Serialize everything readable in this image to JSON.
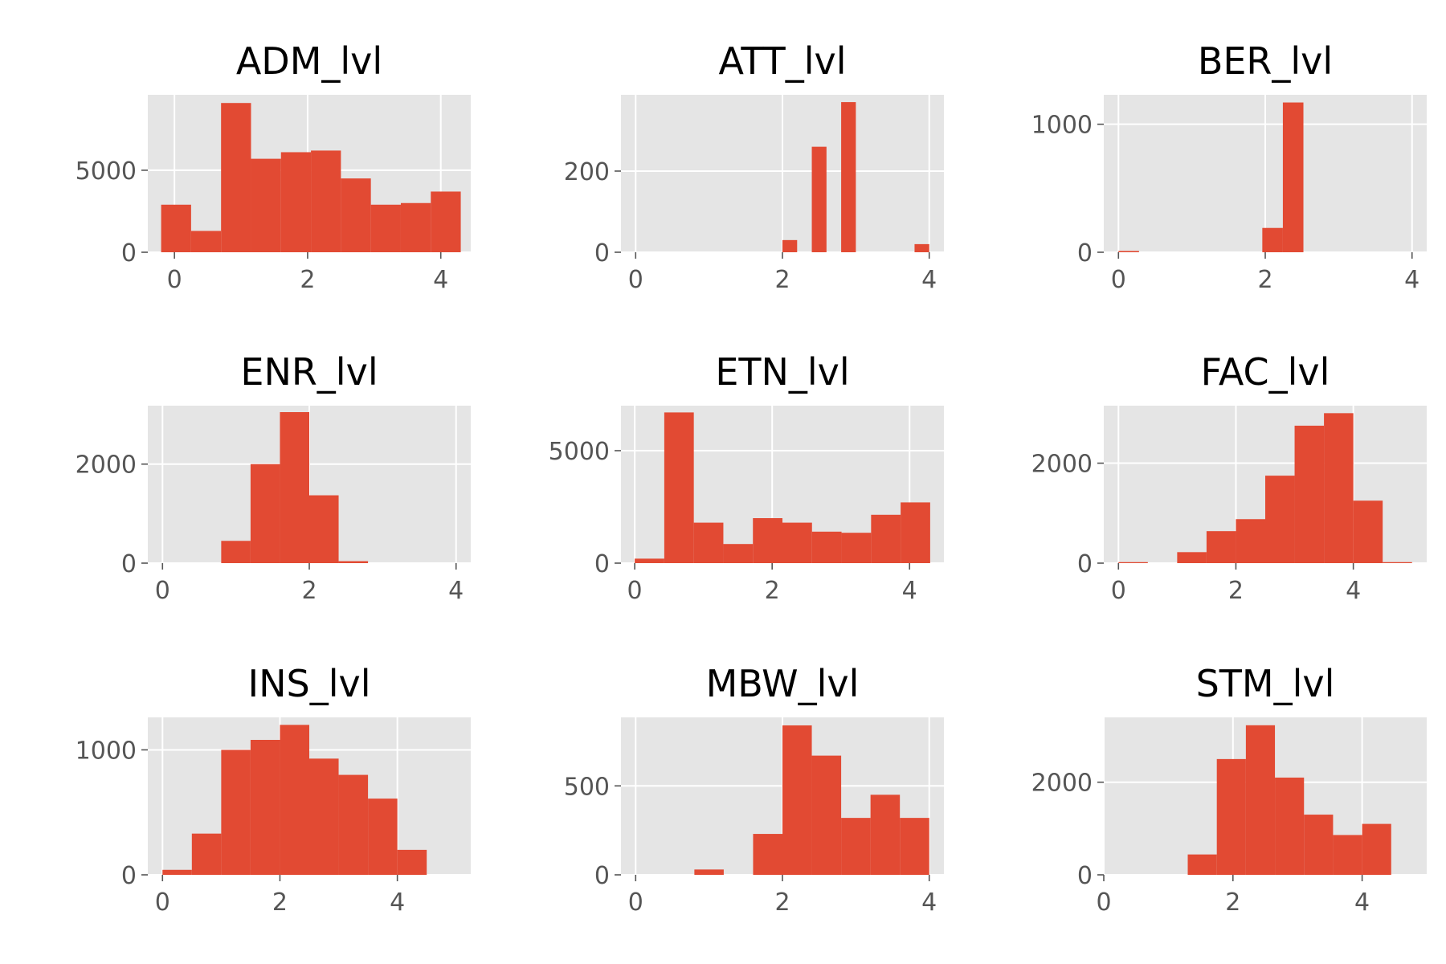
{
  "chart_data": [
    {
      "type": "bar",
      "title": "ADM_lvl",
      "bins": [
        [
          -0.2,
          0.25
        ],
        [
          0.25,
          0.7
        ],
        [
          0.7,
          1.15
        ],
        [
          1.15,
          1.6
        ],
        [
          1.6,
          2.05
        ],
        [
          2.05,
          2.5
        ],
        [
          2.5,
          2.95
        ],
        [
          2.95,
          3.4
        ],
        [
          3.4,
          3.85
        ],
        [
          3.85,
          4.3
        ]
      ],
      "values": [
        2900,
        1300,
        9100,
        5700,
        6100,
        6200,
        4500,
        2900,
        3000,
        3700
      ],
      "xlim": [
        -0.4,
        4.45
      ],
      "ylim": [
        0,
        9600
      ],
      "xticks": [
        0,
        2,
        4
      ],
      "yticks": [
        0,
        5000
      ]
    },
    {
      "type": "bar",
      "title": "ATT_lvl",
      "bins": [
        [
          2.0,
          2.2
        ],
        [
          2.2,
          2.4
        ],
        [
          2.4,
          2.6
        ],
        [
          2.6,
          2.8
        ],
        [
          2.8,
          3.0
        ],
        [
          3.0,
          3.2
        ],
        [
          3.2,
          3.4
        ],
        [
          3.4,
          3.6
        ],
        [
          3.6,
          3.8
        ],
        [
          3.8,
          4.0
        ]
      ],
      "values": [
        30,
        0,
        260,
        0,
        370,
        0,
        0,
        0,
        0,
        20
      ],
      "xlim": [
        -0.2,
        4.2
      ],
      "ylim": [
        0,
        388
      ],
      "xticks": [
        0,
        2,
        4
      ],
      "yticks": [
        0,
        200
      ]
    },
    {
      "type": "bar",
      "title": "BER_lvl",
      "bins": [
        [
          0.0,
          0.28
        ],
        [
          0.28,
          0.56
        ],
        [
          0.56,
          0.84
        ],
        [
          0.84,
          1.12
        ],
        [
          1.12,
          1.4
        ],
        [
          1.4,
          1.68
        ],
        [
          1.68,
          1.96
        ],
        [
          1.96,
          2.24
        ],
        [
          2.24,
          2.52
        ],
        [
          2.52,
          2.8
        ]
      ],
      "values": [
        10,
        0,
        0,
        0,
        0,
        0,
        0,
        190,
        1170,
        0
      ],
      "xlim": [
        -0.2,
        4.2
      ],
      "ylim": [
        0,
        1230
      ],
      "xticks": [
        0,
        2,
        4
      ],
      "yticks": [
        0,
        1000
      ]
    },
    {
      "type": "bar",
      "title": "ENR_lvl",
      "bins": [
        [
          0.8,
          1.2
        ],
        [
          1.2,
          1.6
        ],
        [
          1.6,
          2.0
        ],
        [
          2.0,
          2.4
        ],
        [
          2.4,
          2.8
        ],
        [
          2.8,
          3.2
        ],
        [
          3.2,
          3.6
        ],
        [
          3.6,
          4.0
        ]
      ],
      "values": [
        450,
        2000,
        3050,
        1370,
        40,
        0,
        0,
        0
      ],
      "xlim": [
        -0.2,
        4.2
      ],
      "ylim": [
        0,
        3180
      ],
      "xticks": [
        0,
        2,
        4
      ],
      "yticks": [
        0,
        2000
      ]
    },
    {
      "type": "bar",
      "title": "ETN_lvl",
      "bins": [
        [
          0.0,
          0.43
        ],
        [
          0.43,
          0.86
        ],
        [
          0.86,
          1.29
        ],
        [
          1.29,
          1.72
        ],
        [
          1.72,
          2.15
        ],
        [
          2.15,
          2.58
        ],
        [
          2.58,
          3.01
        ],
        [
          3.01,
          3.44
        ],
        [
          3.44,
          3.87
        ],
        [
          3.87,
          4.3
        ]
      ],
      "values": [
        200,
        6700,
        1800,
        850,
        2000,
        1800,
        1400,
        1350,
        2150,
        2700
      ],
      "xlim": [
        -0.2,
        4.5
      ],
      "ylim": [
        0,
        7000
      ],
      "xticks": [
        0,
        2,
        4
      ],
      "yticks": [
        0,
        5000
      ]
    },
    {
      "type": "bar",
      "title": "FAC_lvl",
      "bins": [
        [
          0.0,
          0.5
        ],
        [
          0.5,
          1.0
        ],
        [
          1.0,
          1.5
        ],
        [
          1.5,
          2.0
        ],
        [
          2.0,
          2.5
        ],
        [
          2.5,
          3.0
        ],
        [
          3.0,
          3.5
        ],
        [
          3.5,
          4.0
        ],
        [
          4.0,
          4.5
        ],
        [
          4.5,
          5.0
        ]
      ],
      "values": [
        20,
        0,
        220,
        640,
        880,
        1750,
        2750,
        3000,
        1250,
        20
      ],
      "xlim": [
        -0.25,
        5.25
      ],
      "ylim": [
        0,
        3150
      ],
      "xticks": [
        0,
        2,
        4
      ],
      "yticks": [
        0,
        2000
      ]
    },
    {
      "type": "bar",
      "title": "INS_lvl",
      "bins": [
        [
          0.0,
          0.5
        ],
        [
          0.5,
          1.0
        ],
        [
          1.0,
          1.5
        ],
        [
          1.5,
          2.0
        ],
        [
          2.0,
          2.5
        ],
        [
          2.5,
          3.0
        ],
        [
          3.0,
          3.5
        ],
        [
          3.5,
          4.0
        ],
        [
          4.0,
          4.5
        ]
      ],
      "values": [
        40,
        330,
        1000,
        1080,
        1200,
        930,
        800,
        610,
        200
      ],
      "xlim": [
        -0.25,
        5.25
      ],
      "ylim": [
        0,
        1260
      ],
      "xticks": [
        0,
        2,
        4
      ],
      "yticks": [
        0,
        1000
      ]
    },
    {
      "type": "bar",
      "title": "MBW_lvl",
      "bins": [
        [
          0.8,
          1.2
        ],
        [
          1.2,
          1.6
        ],
        [
          1.6,
          2.0
        ],
        [
          2.0,
          2.4
        ],
        [
          2.4,
          2.8
        ],
        [
          2.8,
          3.2
        ],
        [
          3.2,
          3.6
        ],
        [
          3.6,
          4.0
        ]
      ],
      "values": [
        30,
        0,
        230,
        840,
        670,
        320,
        450,
        320
      ],
      "xlim": [
        -0.2,
        4.2
      ],
      "ylim": [
        0,
        885
      ],
      "xticks": [
        0,
        2,
        4
      ],
      "yticks": [
        0,
        500
      ]
    },
    {
      "type": "bar",
      "title": "STM_lvl",
      "bins": [
        [
          1.3,
          1.75
        ],
        [
          1.75,
          2.2
        ],
        [
          2.2,
          2.65
        ],
        [
          2.65,
          3.1
        ],
        [
          3.1,
          3.55
        ],
        [
          3.55,
          4.0
        ],
        [
          4.0,
          4.45
        ]
      ],
      "values": [
        440,
        2500,
        3230,
        2100,
        1300,
        860,
        1100
      ],
      "xlim": [
        0,
        5.0
      ],
      "ylim": [
        0,
        3400
      ],
      "xticks": [
        0,
        2,
        4
      ],
      "yticks": [
        0,
        2000
      ]
    }
  ]
}
